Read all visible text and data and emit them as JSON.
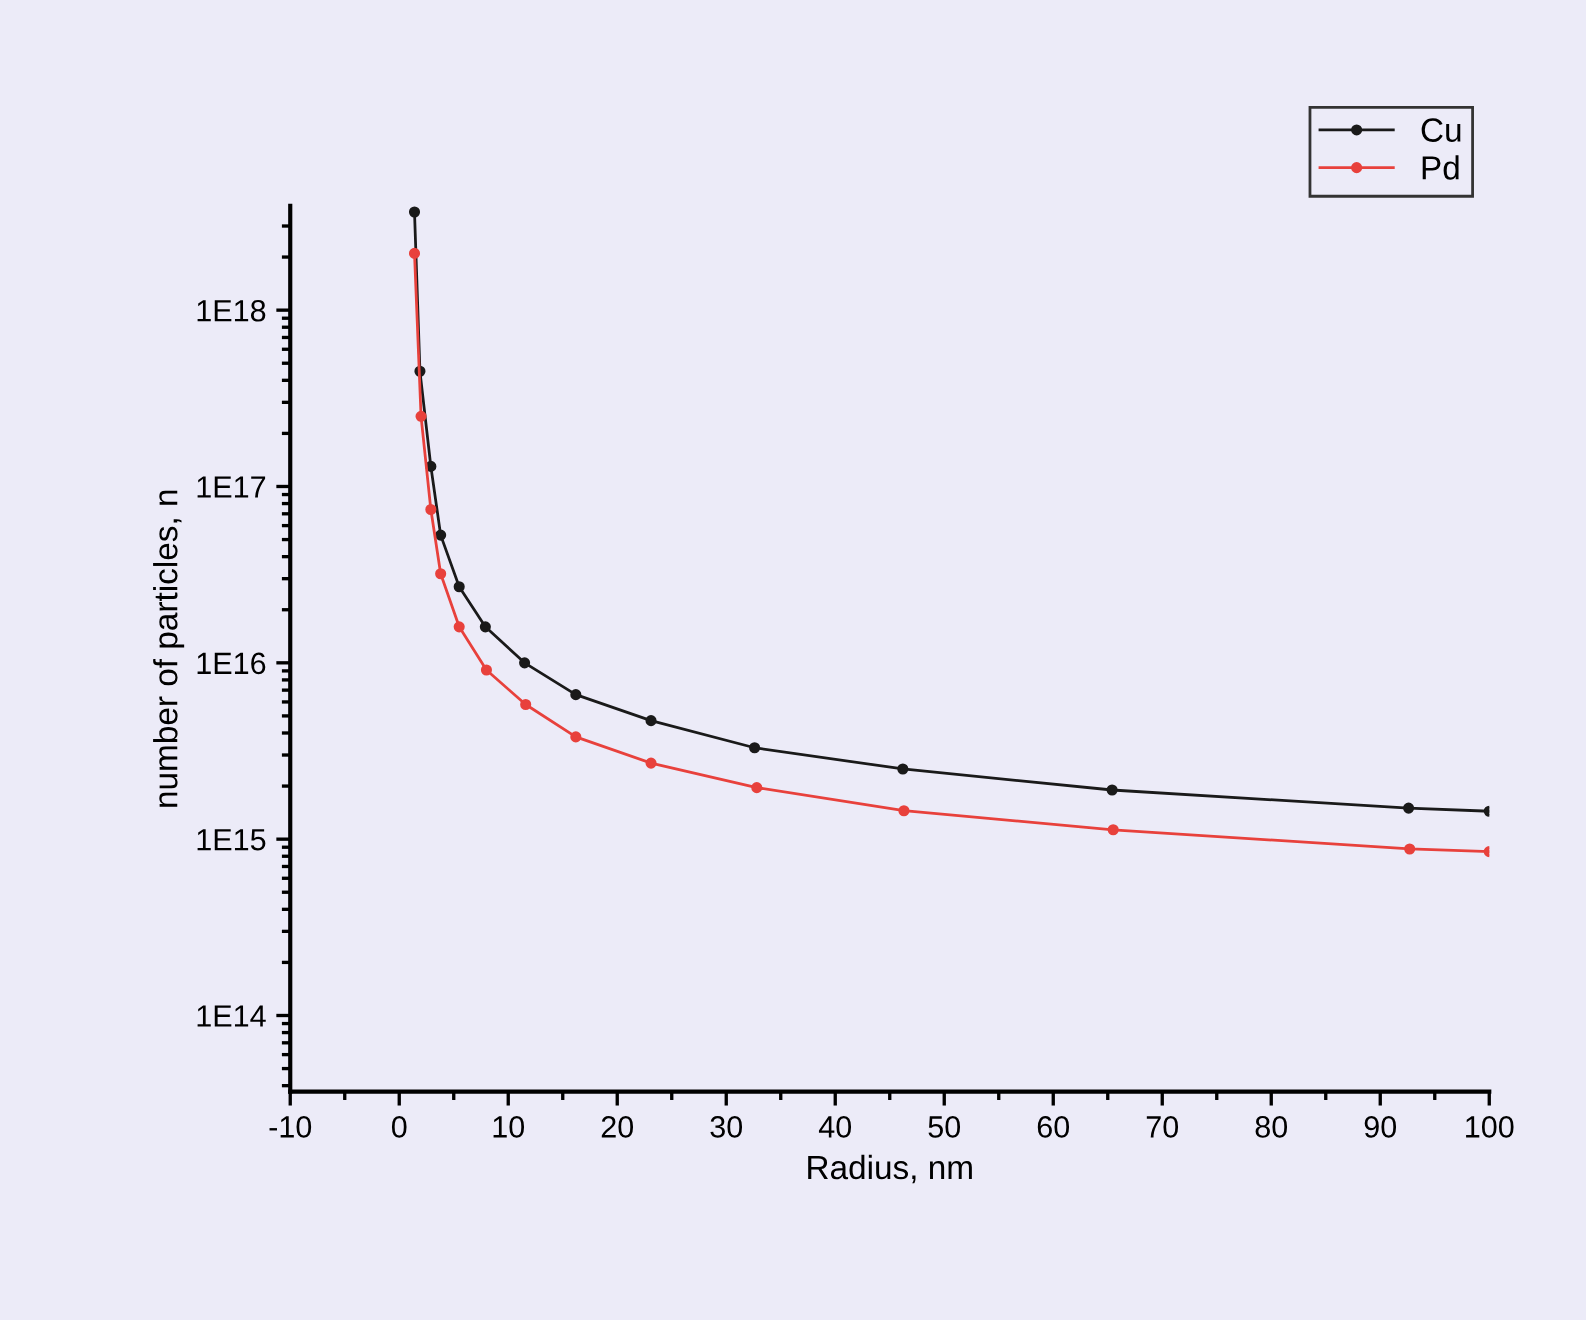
{
  "chart_data": {
    "type": "line",
    "xlabel": "Radius, nm",
    "ylabel": "number of particles, n",
    "log": "y",
    "xlim": [
      -10,
      100
    ],
    "xticks": [
      -10,
      0,
      10,
      20,
      30,
      40,
      50,
      60,
      70,
      80,
      90,
      100
    ],
    "ylim": [
      37000000000000.0,
      3.9e+18
    ],
    "yticks": [
      {
        "value": 100000000000000.0,
        "label": "1E14"
      },
      {
        "value": 1000000000000000.0,
        "label": "1E15"
      },
      {
        "value": 1e+16,
        "label": "1E16"
      },
      {
        "value": 1e+17,
        "label": "1E17"
      },
      {
        "value": 1e+18,
        "label": "1E18"
      }
    ],
    "legend": "top right",
    "marker": "circle",
    "line_style": "solid",
    "grid": false,
    "series": [
      {
        "name": "Cu",
        "color": "#1a1a1a",
        "x": [
          1.4,
          1.9,
          2.9,
          3.8,
          5.5,
          7.9,
          11.5,
          16.2,
          23.1,
          32.6,
          46.2,
          65.4,
          92.6,
          100
        ],
        "values": [
          3.6e+18,
          4.5e+17,
          1.3e+17,
          5.3e+16,
          2.7e+16,
          1.6e+16,
          1e+16,
          6600000000000000.0,
          4700000000000000.0,
          3300000000000000.0,
          2500000000000000.0,
          1900000000000000.0,
          1500000000000000.0,
          1440000000000000.0
        ]
      },
      {
        "name": "Pd",
        "color": "#e8413c",
        "x": [
          1.4,
          2.0,
          2.9,
          3.8,
          5.5,
          8.0,
          11.6,
          16.2,
          23.1,
          32.8,
          46.3,
          65.5,
          92.7,
          100
        ],
        "values": [
          2.1e+18,
          2.5e+17,
          7.4e+16,
          3.2e+16,
          1.6e+16,
          9100000000000000.0,
          5800000000000000.0,
          3800000000000000.0,
          2700000000000000.0,
          1960000000000000.0,
          1450000000000000.0,
          1130000000000000.0,
          880000000000000.0,
          850000000000000.0
        ]
      }
    ]
  }
}
